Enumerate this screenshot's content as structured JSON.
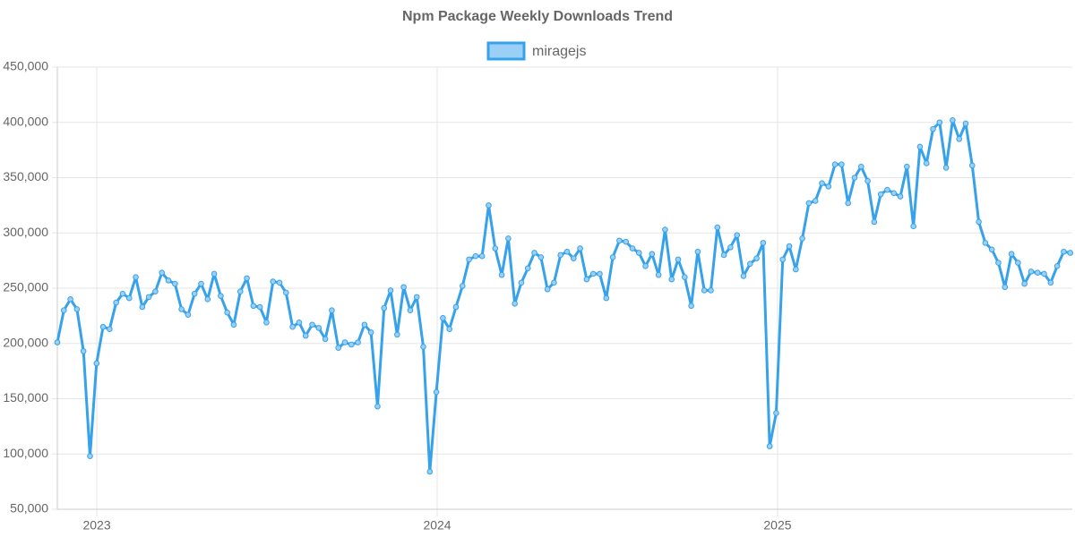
{
  "chart_data": {
    "type": "line",
    "title": "Npm Package Weekly Downloads Trend",
    "legend": "top",
    "grid": true,
    "x": [
      2022.884,
      2022.9032,
      2022.9224,
      2022.9416,
      2022.9608,
      2022.98,
      2022.9992,
      2023.0184,
      2023.0376,
      2023.0568,
      2023.076,
      2023.0952,
      2023.1144,
      2023.1336,
      2023.1528,
      2023.172,
      2023.1912,
      2023.2104,
      2023.2296,
      2023.2488,
      2023.268,
      2023.2872,
      2023.3064,
      2023.3256,
      2023.3448,
      2023.364,
      2023.3832,
      2023.4024,
      2023.4216,
      2023.4408,
      2023.46,
      2023.4792,
      2023.4984,
      2023.5176,
      2023.5368,
      2023.556,
      2023.5752,
      2023.5944,
      2023.6136,
      2023.6328,
      2023.652,
      2023.6712,
      2023.6904,
      2023.7096,
      2023.7288,
      2023.748,
      2023.7672,
      2023.7864,
      2023.8056,
      2023.8248,
      2023.844,
      2023.8632,
      2023.8824,
      2023.9016,
      2023.9208,
      2023.94,
      2023.9592,
      2023.9784,
      2023.9976,
      2024.0168,
      2024.036,
      2024.0552,
      2024.0744,
      2024.0936,
      2024.1128,
      2024.132,
      2024.1512,
      2024.1704,
      2024.1896,
      2024.2088,
      2024.228,
      2024.2472,
      2024.2664,
      2024.2856,
      2024.3048,
      2024.324,
      2024.3432,
      2024.3624,
      2024.3816,
      2024.4008,
      2024.42,
      2024.4392,
      2024.4584,
      2024.4776,
      2024.4968,
      2024.516,
      2024.5352,
      2024.5544,
      2024.5736,
      2024.5928,
      2024.612,
      2024.6312,
      2024.6504,
      2024.6696,
      2024.6888,
      2024.708,
      2024.7272,
      2024.7464,
      2024.7656,
      2024.7848,
      2024.804,
      2024.8232,
      2024.8424,
      2024.8616,
      2024.8808,
      2024.9,
      2024.9192,
      2024.9384,
      2024.9576,
      2024.9768,
      2024.996,
      2025.0152,
      2025.0344,
      2025.0536,
      2025.0728,
      2025.092,
      2025.1112,
      2025.1304,
      2025.1496,
      2025.1688,
      2025.188,
      2025.2072,
      2025.2264,
      2025.2456,
      2025.2648,
      2025.284,
      2025.3032,
      2025.3224,
      2025.3416,
      2025.3608,
      2025.38,
      2025.3992,
      2025.4184,
      2025.4376,
      2025.4568,
      2025.476,
      2025.4952,
      2025.5144,
      2025.5336,
      2025.5528,
      2025.572,
      2025.5912,
      2025.6104,
      2025.6296,
      2025.6488,
      2025.668,
      2025.6872,
      2025.7064,
      2025.7256,
      2025.7448,
      2025.764,
      2025.7832,
      2025.8024,
      2025.8216,
      2025.8408,
      2025.86
    ],
    "series": [
      {
        "name": "miragejs",
        "color": "#36a2eb",
        "values": [
          201000,
          230000,
          240000,
          231000,
          193000,
          98000,
          182000,
          215000,
          213000,
          237000,
          245000,
          241000,
          260000,
          233000,
          242000,
          247000,
          264000,
          257000,
          254000,
          231000,
          226000,
          245000,
          254000,
          240000,
          263000,
          243000,
          228000,
          217000,
          247000,
          259000,
          234000,
          233000,
          219000,
          256000,
          255000,
          246000,
          215000,
          219000,
          207000,
          217000,
          214000,
          204000,
          230000,
          196000,
          201000,
          199000,
          201000,
          217000,
          210000,
          143000,
          232000,
          248000,
          208000,
          251000,
          230000,
          242000,
          197000,
          84000,
          156000,
          223000,
          213000,
          233000,
          252000,
          276000,
          279000,
          279000,
          325000,
          286000,
          262000,
          295000,
          236000,
          255000,
          268000,
          282000,
          278000,
          249000,
          255000,
          280000,
          283000,
          277000,
          286000,
          258000,
          263000,
          263000,
          241000,
          278000,
          293000,
          292000,
          286000,
          282000,
          270000,
          281000,
          262000,
          303000,
          258000,
          276000,
          260000,
          234000,
          283000,
          248000,
          248000,
          305000,
          280000,
          287000,
          298000,
          261000,
          272000,
          277000,
          291000,
          107000,
          137000,
          276000,
          288000,
          267000,
          295000,
          327000,
          329000,
          345000,
          342000,
          362000,
          362000,
          327000,
          350000,
          360000,
          347000,
          310000,
          335000,
          339000,
          336000,
          333000,
          360000,
          306000,
          378000,
          363000,
          394000,
          400000,
          359000,
          402000,
          385000,
          399000,
          361000,
          310000,
          291000,
          285000,
          273000,
          251000,
          281000,
          273000,
          254000,
          265000,
          264000,
          263000,
          255000,
          270000,
          283000,
          282000
        ]
      }
    ],
    "xlim": [
      2022.884,
      2025.866
    ],
    "xticks": [
      2023,
      2024,
      2025
    ],
    "ylim": [
      50000,
      450000
    ],
    "yticks": [
      {
        "value": 50000,
        "label": "50,000"
      },
      {
        "value": 100000,
        "label": "100,000"
      },
      {
        "value": 150000,
        "label": "150,000"
      },
      {
        "value": 200000,
        "label": "200,000"
      },
      {
        "value": 250000,
        "label": "250,000"
      },
      {
        "value": 300000,
        "label": "300,000"
      },
      {
        "value": 350000,
        "label": "350,000"
      },
      {
        "value": 400000,
        "label": "400,000"
      },
      {
        "value": 450000,
        "label": "450,000"
      }
    ]
  }
}
